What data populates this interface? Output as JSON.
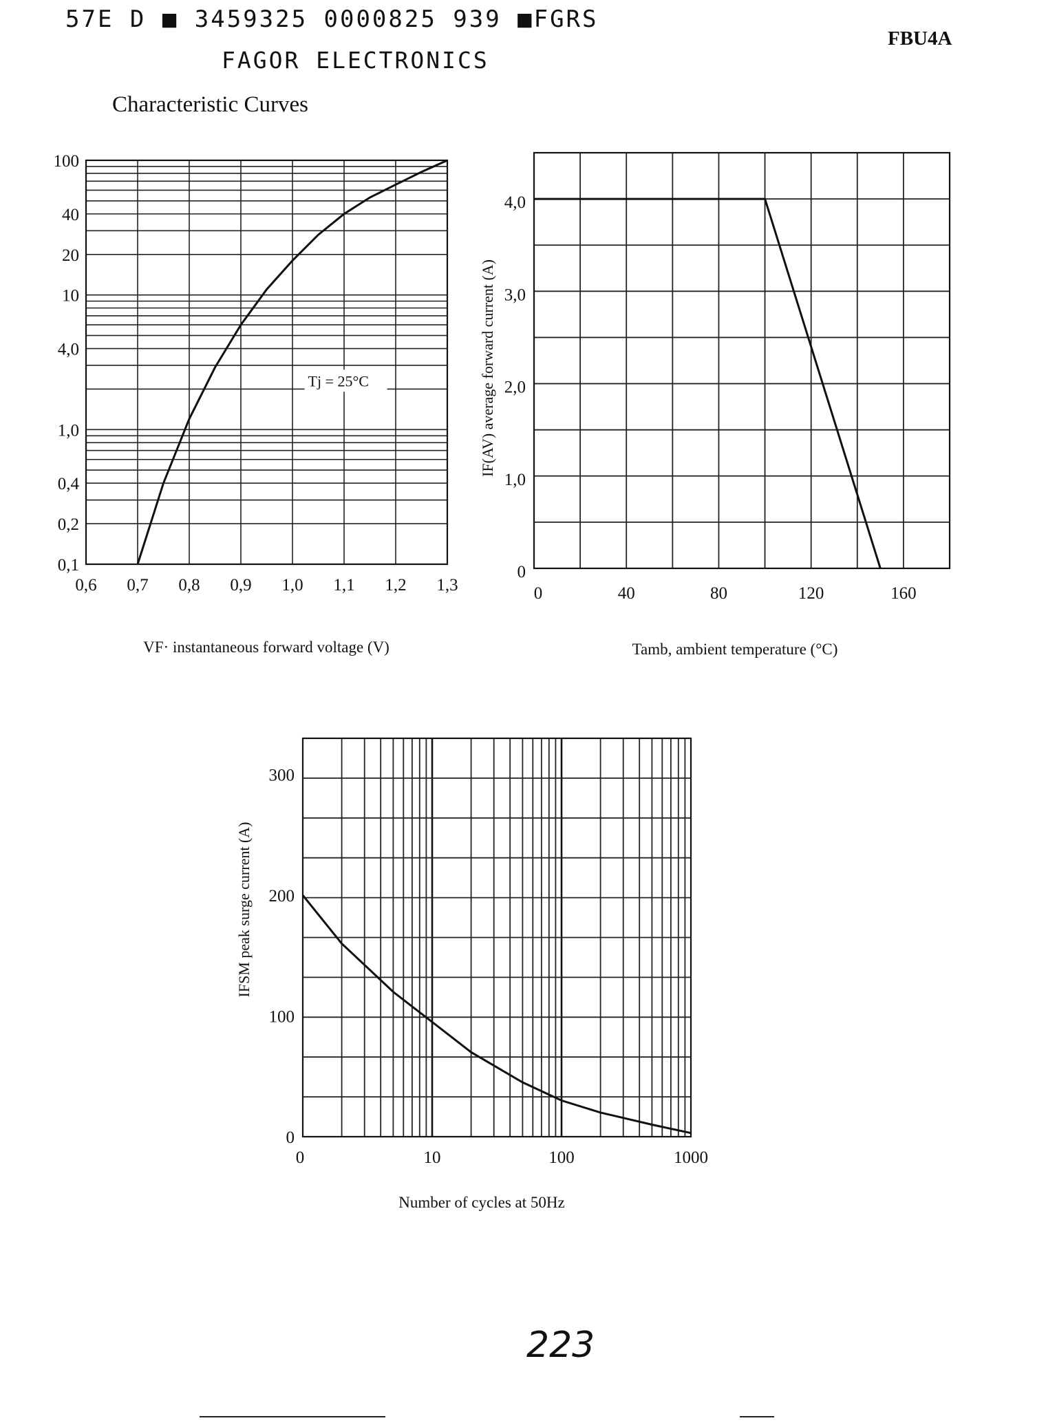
{
  "header": {
    "code_line": "57E D ■ 3459325 0000825 939 ■FGRS",
    "company": "FAGOR ELECTRONICS",
    "part_number": "FBU4A"
  },
  "section_title": "Characteristic Curves",
  "page_number": "223",
  "chart_data": [
    {
      "type": "line",
      "title": "",
      "xlabel": "VF· instantaneous forward voltage (V)",
      "ylabel": "",
      "x_scale": "linear",
      "y_scale": "log",
      "xlim": [
        0.6,
        1.3
      ],
      "ylim": [
        0.1,
        100
      ],
      "x_ticks": [
        "0,6",
        "0,7",
        "0,8",
        "0,9",
        "1,0",
        "1,1",
        "1,2",
        "1,3"
      ],
      "y_ticks": [
        "0,1",
        "0,2",
        "0,4",
        "1,0",
        "4,0",
        "10",
        "20",
        "40",
        "100"
      ],
      "annotation": "Tj = 25°C",
      "grid": true,
      "series": [
        {
          "x": [
            0.7,
            0.75,
            0.8,
            0.85,
            0.9,
            0.95,
            1.0,
            1.05,
            1.1,
            1.15,
            1.2,
            1.25,
            1.3
          ],
          "y": [
            0.1,
            0.4,
            1.2,
            2.9,
            6.0,
            11,
            18,
            28,
            40,
            53,
            66,
            82,
            100
          ]
        }
      ]
    },
    {
      "type": "line",
      "title": "",
      "xlabel": "Tamb, ambient temperature (°C)",
      "ylabel": "IF(AV) average forward current (A)",
      "ylabel_sub": "(AV)",
      "xlim": [
        0,
        180
      ],
      "ylim": [
        0,
        4.5
      ],
      "x_ticks": [
        "0",
        "40",
        "80",
        "120",
        "160"
      ],
      "y_ticks": [
        "0",
        "1,0",
        "2,0",
        "3,0",
        "4,0"
      ],
      "grid": true,
      "series": [
        {
          "x": [
            0,
            100,
            150
          ],
          "y": [
            4.0,
            4.0,
            0
          ]
        }
      ]
    },
    {
      "type": "line",
      "title": "",
      "xlabel": "Number of cycles at 50Hz",
      "ylabel": "IFSM peak surge current (A)",
      "ylabel_sub": "FSM",
      "x_scale": "log",
      "xlim": [
        1,
        1000
      ],
      "ylim": [
        0,
        330
      ],
      "x_ticks": [
        "0",
        "10",
        "100",
        "1000"
      ],
      "y_ticks": [
        "0",
        "100",
        "200",
        "300"
      ],
      "grid": true,
      "series": [
        {
          "x": [
            1,
            2,
            5,
            10,
            20,
            50,
            100,
            200,
            500,
            1000
          ],
          "y": [
            200,
            160,
            120,
            95,
            70,
            45,
            30,
            20,
            10,
            3
          ]
        }
      ]
    }
  ]
}
